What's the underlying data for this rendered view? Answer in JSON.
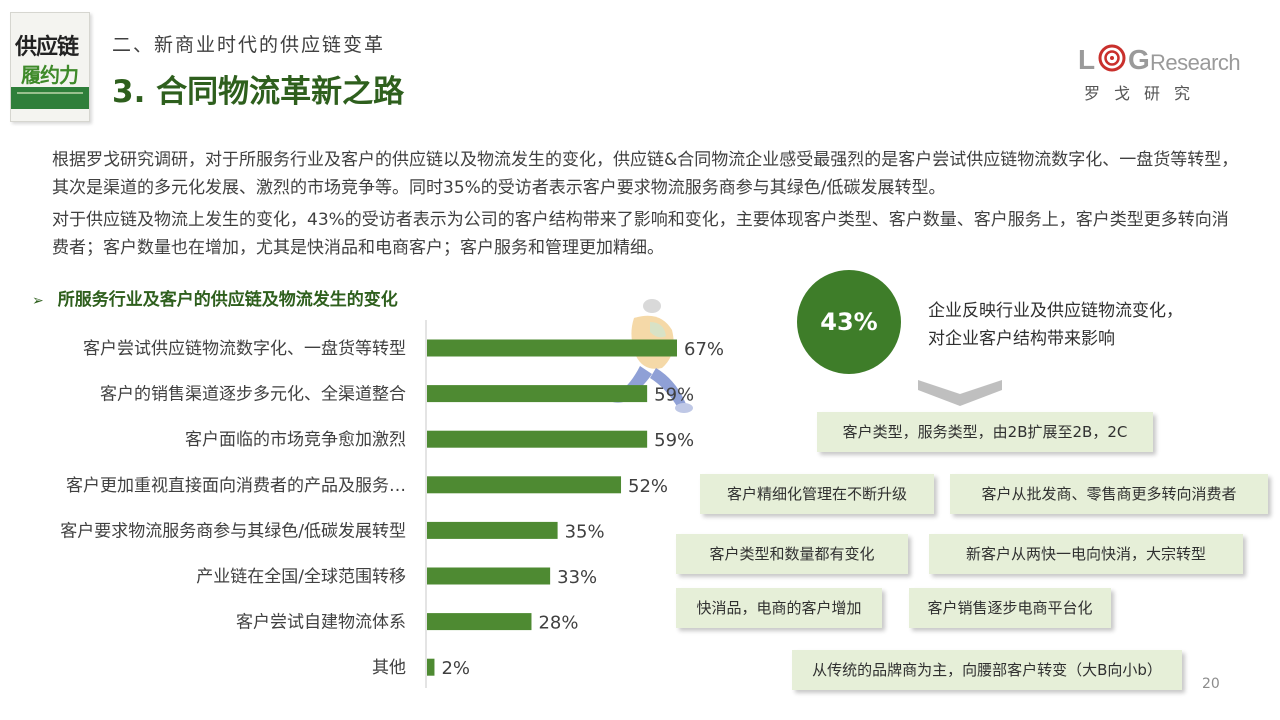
{
  "book": {
    "title_line1": "供应链",
    "title_line2": "履约力"
  },
  "header": {
    "section": "二、新商业时代的供应链变革",
    "title": "3. 合同物流革新之路"
  },
  "logo": {
    "letter_l": "L",
    "letter_g": "G",
    "research": "Research",
    "chinese": "罗戈研究"
  },
  "paragraphs": [
    "根据罗戈研究调研，对于所服务行业及客户的供应链以及物流发生的变化，供应链&合同物流企业感受最强烈的是客户尝试供应链物流数字化、一盘货等转型，其次是渠道的多元化发展、激烈的市场竞争等。同时35%的受访者表示客户要求物流服务商参与其绿色/低碳发展转型。",
    "对于供应链及物流上发生的变化，43%的受访者表示为公司的客户结构带来了影响和变化，主要体现客户类型、客户数量、客户服务上，客户类型更多转向消费者；客户数量也在增加，尤其是快消品和电商客户；客户服务和管理更加精细。"
  ],
  "chart_heading": {
    "arrow": "➢",
    "text": "所服务行业及客户的供应链及物流发生的变化"
  },
  "chart_data": {
    "type": "bar",
    "orientation": "horizontal",
    "categories": [
      "客户尝试供应链物流数字化、一盘货等转型",
      "客户的销售渠道逐步多元化、全渠道整合",
      "客户面临的市场竞争愈加激烈",
      "客户更加重视直接面向消费者的产品及服务…",
      "客户要求物流服务商参与其绿色/低碳发展转型",
      "产业链在全国/全球范围转移",
      "客户尝试自建物流体系",
      "其他"
    ],
    "values": [
      67,
      59,
      59,
      52,
      35,
      33,
      28,
      2
    ],
    "value_labels": [
      "67%",
      "59%",
      "59%",
      "52%",
      "35%",
      "33%",
      "28%",
      "2%"
    ],
    "unit": "%",
    "xlim": [
      0,
      100
    ],
    "bar_color": "#4e8a32",
    "grid": false
  },
  "highlight": {
    "percent": "43%",
    "caption": "企业反映行业及供应链物流变化，对企业客户结构带来影响",
    "circle_color": "#3e7d29"
  },
  "tags": [
    "客户类型，服务类型，由2B扩展至2B，2C",
    "客户精细化管理在不断升级",
    "客户从批发商、零售商更多转向消费者",
    "客户类型和数量都有变化",
    "新客户从两快一电向快消，大宗转型",
    "快消品，电商的客户增加",
    "客户销售逐步电商平台化",
    "从传统的品牌商为主，向腰部客户转变（大B向小b）"
  ],
  "page_number": "20",
  "colors": {
    "accent_green": "#2e5f1d",
    "tag_bg": "#e6efd8"
  }
}
